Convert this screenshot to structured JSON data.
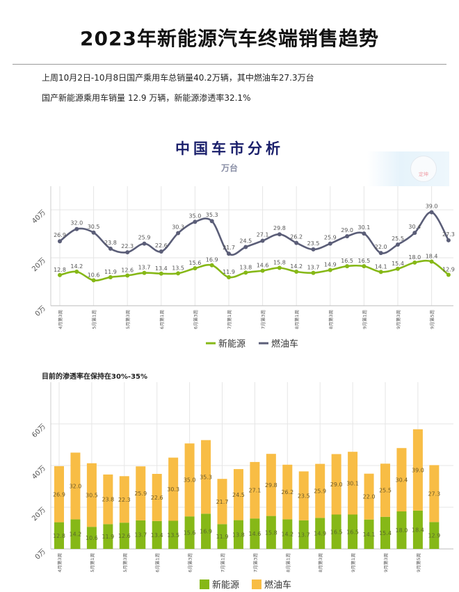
{
  "page": {
    "title": "2023年新能源汽车终端销售趋势",
    "summary_line_1": "上周10月2日-10月8日国产乘用车总销量40.2万辆，其中燃油车27.3万台",
    "summary_line_2": "国产新能源乘用车销量 12.9 万辆，新能源渗透率32.1%",
    "stamp_label": "定坤"
  },
  "colors": {
    "nev": "#86b817",
    "ice": "#5b5e78",
    "ice_bar": "#f8bd45",
    "grid": "#e6e6e6"
  },
  "chart_data": [
    {
      "type": "line",
      "title": "中国车市分析",
      "subtitle": "万台",
      "categories": [
        "4月第3周",
        "",
        "5月第1周",
        "",
        "5月第3周",
        "",
        "6月第1周",
        "",
        "6月第3周",
        "",
        "7月第1周",
        "",
        "7月第3周",
        "",
        "8月第1周",
        "",
        "8月第3周",
        "",
        "9月第1周",
        "",
        "9月第3周",
        "",
        "9月第5周",
        ""
      ],
      "series": [
        {
          "name": "新能源",
          "values": [
            12.8,
            14.2,
            10.6,
            11.9,
            12.6,
            13.7,
            13.4,
            13.5,
            15.6,
            16.9,
            11.9,
            13.8,
            14.6,
            15.8,
            14.2,
            13.7,
            14.9,
            16.5,
            16.5,
            14.1,
            15.4,
            18.0,
            18.4,
            12.9
          ]
        },
        {
          "name": "燃油车",
          "values": [
            26.9,
            32.0,
            30.5,
            23.8,
            22.3,
            25.9,
            22.6,
            30.3,
            35.0,
            35.3,
            21.7,
            24.5,
            27.1,
            29.8,
            26.2,
            23.5,
            25.9,
            29.0,
            30.1,
            22.0,
            25.5,
            30.4,
            39.0,
            27.3
          ]
        }
      ],
      "ytick_labels": [
        "0万",
        "20万",
        "40万"
      ],
      "ylim": [
        0,
        55
      ],
      "grid": true,
      "legend_position": "bottom-center"
    },
    {
      "type": "bar",
      "stacked": true,
      "note": "目前的渗透率在保持在30%-35%",
      "categories": [
        "4月第3周",
        "",
        "5月第1周",
        "",
        "5月第3周",
        "",
        "6月第1周",
        "",
        "6月第3周",
        "",
        "7月第1周",
        "",
        "7月第3周",
        "",
        "8月第1周",
        "",
        "8月第3周",
        "",
        "9月第1周",
        "",
        "9月第3周",
        "",
        "9月第5周",
        ""
      ],
      "series": [
        {
          "name": "新能源",
          "values": [
            12.8,
            14.2,
            10.6,
            11.9,
            12.6,
            13.7,
            13.4,
            13.5,
            15.6,
            16.9,
            11.9,
            13.8,
            14.6,
            15.8,
            14.2,
            13.7,
            14.9,
            16.5,
            16.5,
            14.1,
            15.4,
            18.0,
            18.4,
            12.9
          ]
        },
        {
          "name": "燃油车",
          "values": [
            26.9,
            32.0,
            30.5,
            23.8,
            22.3,
            25.9,
            22.6,
            30.3,
            35.0,
            35.3,
            21.7,
            24.5,
            27.1,
            29.8,
            26.2,
            23.5,
            25.9,
            29.0,
            30.1,
            22.0,
            25.5,
            30.4,
            39.0,
            27.3
          ]
        }
      ],
      "ytick_labels": [
        "0万",
        "20万",
        "40万",
        "60万"
      ],
      "ylim": [
        0,
        75
      ],
      "grid": true,
      "legend_position": "bottom-center"
    }
  ]
}
